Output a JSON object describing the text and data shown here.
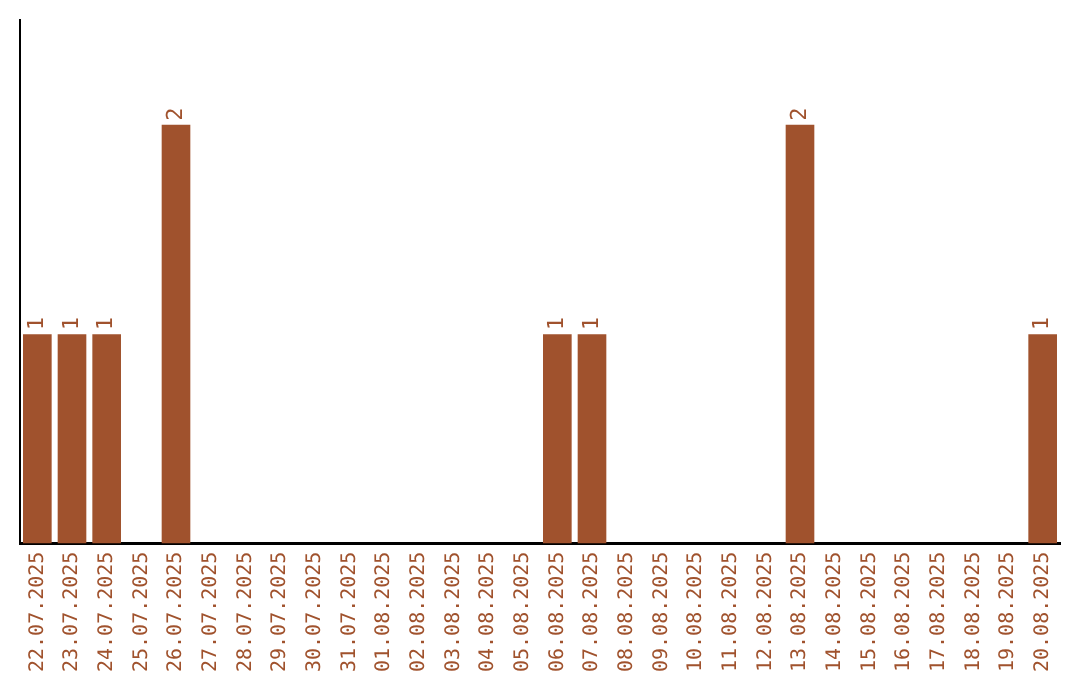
{
  "chart_data": {
    "type": "bar",
    "categories": [
      "22.07.2025",
      "23.07.2025",
      "24.07.2025",
      "25.07.2025",
      "26.07.2025",
      "27.07.2025",
      "28.07.2025",
      "29.07.2025",
      "30.07.2025",
      "31.07.2025",
      "01.08.2025",
      "02.08.2025",
      "03.08.2025",
      "04.08.2025",
      "05.08.2025",
      "06.08.2025",
      "07.08.2025",
      "08.08.2025",
      "09.08.2025",
      "10.08.2025",
      "11.08.2025",
      "12.08.2025",
      "13.08.2025",
      "14.08.2025",
      "15.08.2025",
      "16.08.2025",
      "17.08.2025",
      "18.08.2025",
      "19.08.2025",
      "20.08.2025"
    ],
    "values": [
      1,
      1,
      1,
      0,
      2,
      0,
      0,
      0,
      0,
      0,
      0,
      0,
      0,
      0,
      0,
      1,
      1,
      0,
      0,
      0,
      0,
      0,
      2,
      0,
      0,
      0,
      0,
      0,
      0,
      1
    ],
    "value_labels": [
      "1",
      "1",
      "1",
      null,
      "2",
      null,
      null,
      null,
      null,
      null,
      null,
      null,
      null,
      null,
      null,
      "1",
      "1",
      null,
      null,
      null,
      null,
      null,
      "2",
      null,
      null,
      null,
      null,
      null,
      null,
      "1"
    ],
    "color": "#a0522d",
    "grid": false,
    "legend": false
  }
}
